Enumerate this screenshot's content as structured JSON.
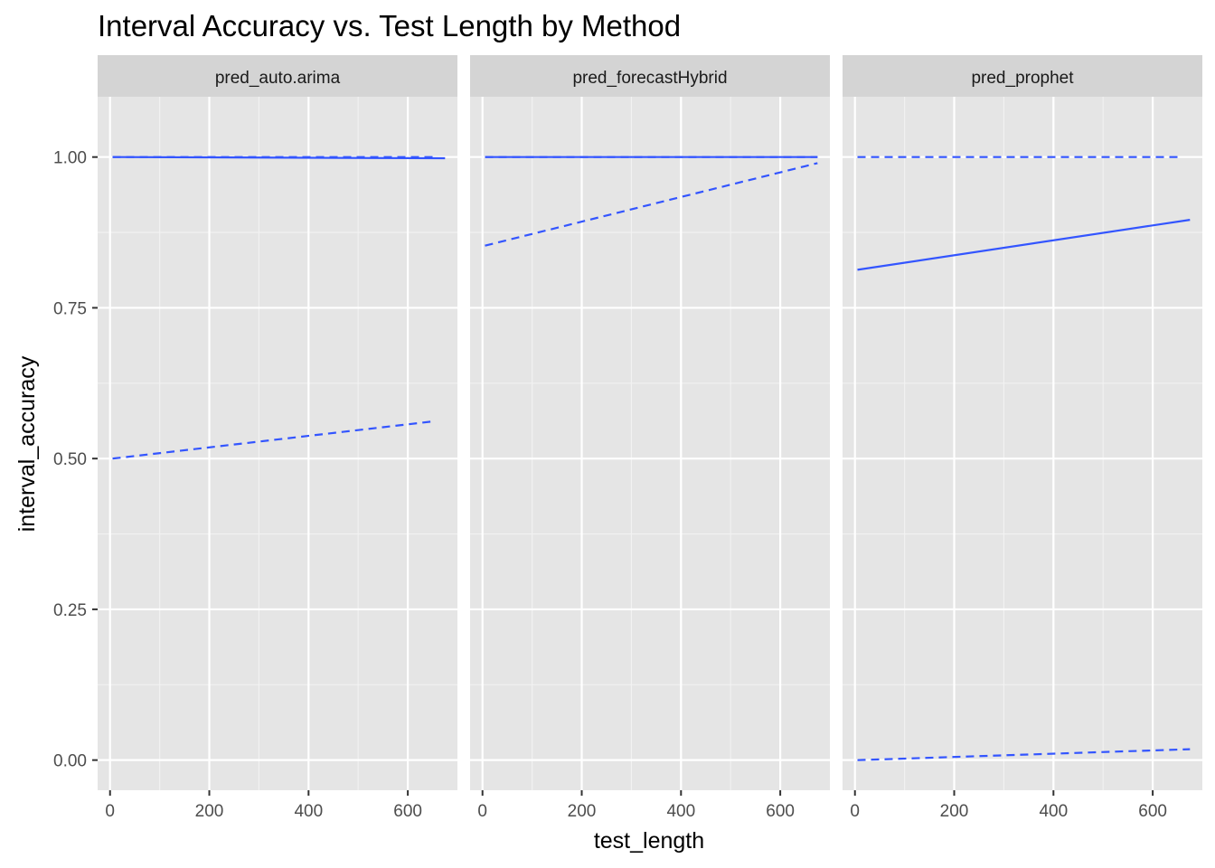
{
  "chart_data": {
    "type": "line",
    "title": "Interval Accuracy vs. Test Length by Method",
    "xlabel": "test_length",
    "ylabel": "interval_accuracy",
    "xlim": [
      -25,
      700
    ],
    "ylim": [
      -0.05,
      1.1
    ],
    "x_ticks": [
      0,
      200,
      400,
      600
    ],
    "x_tick_labels": [
      "0",
      "200",
      "400",
      "600"
    ],
    "y_ticks": [
      0,
      0.25,
      0.5,
      0.75,
      1.0
    ],
    "y_tick_labels": [
      "0.00",
      "0.25",
      "0.50",
      "0.75",
      "1.00"
    ],
    "grid": true,
    "panels": [
      {
        "name": "pred_auto.arima",
        "series": [
          {
            "style": "solid",
            "x": [
              5,
              675
            ],
            "y": [
              1.0,
              0.998
            ]
          },
          {
            "style": "dashed",
            "x": [
              5,
              655
            ],
            "y": [
              1.0,
              1.0
            ]
          },
          {
            "style": "dashed",
            "x": [
              5,
              655
            ],
            "y": [
              0.5,
              0.562
            ]
          }
        ]
      },
      {
        "name": "pred_forecastHybrid",
        "series": [
          {
            "style": "solid",
            "x": [
              5,
              675
            ],
            "y": [
              1.0,
              1.0
            ]
          },
          {
            "style": "dashed",
            "x": [
              5,
              675
            ],
            "y": [
              1.0,
              1.0
            ]
          },
          {
            "style": "dashed",
            "x": [
              5,
              675
            ],
            "y": [
              0.853,
              0.99
            ]
          }
        ]
      },
      {
        "name": "pred_prophet",
        "series": [
          {
            "style": "solid",
            "x": [
              5,
              675
            ],
            "y": [
              0.813,
              0.896
            ]
          },
          {
            "style": "dashed",
            "x": [
              5,
              655
            ],
            "y": [
              1.0,
              1.0
            ]
          },
          {
            "style": "dashed",
            "x": [
              5,
              675
            ],
            "y": [
              0.0,
              0.018
            ]
          }
        ]
      }
    ],
    "colors": {
      "line": "#3355ff",
      "panel_background": "#e5e5e5",
      "strip_background": "#d4d4d4",
      "grid_major": "#ffffff",
      "grid_minor": "#f2f2f2"
    }
  }
}
